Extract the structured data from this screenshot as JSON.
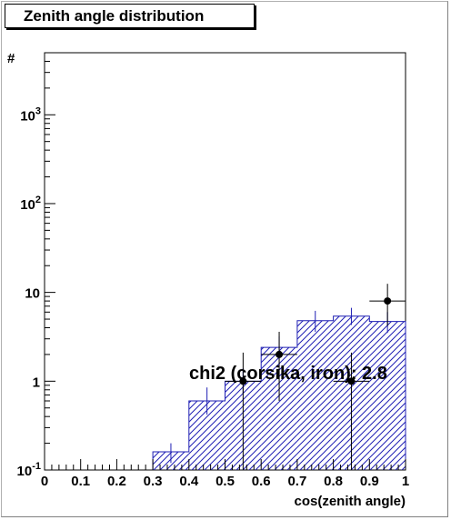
{
  "chart_data": {
    "type": "histogram",
    "title": "Zenith angle distribution",
    "xlabel": "cos(zenith angle)",
    "ylabel": "#",
    "xlim": [
      0,
      1
    ],
    "ylim": [
      0.1,
      5000
    ],
    "yscale": "log",
    "grid": false,
    "x_ticks": [
      {
        "value": 0,
        "label": "0"
      },
      {
        "value": 0.1,
        "label": "0.1"
      },
      {
        "value": 0.2,
        "label": "0.2"
      },
      {
        "value": 0.3,
        "label": "0.3"
      },
      {
        "value": 0.4,
        "label": "0.4"
      },
      {
        "value": 0.5,
        "label": "0.5"
      },
      {
        "value": 0.6,
        "label": "0.6"
      },
      {
        "value": 0.7,
        "label": "0.7"
      },
      {
        "value": 0.8,
        "label": "0.8"
      },
      {
        "value": 0.9,
        "label": "0.9"
      },
      {
        "value": 1,
        "label": "1"
      }
    ],
    "y_ticks": [
      {
        "value": 0.1,
        "base": "10",
        "exp": "-1"
      },
      {
        "value": 1,
        "base": "1",
        "exp": ""
      },
      {
        "value": 10,
        "base": "10",
        "exp": ""
      },
      {
        "value": 100,
        "base": "10",
        "exp": "2"
      },
      {
        "value": 1000,
        "base": "10",
        "exp": "3"
      }
    ],
    "simulation": {
      "color": "#1f1fb4",
      "fill": "hatched",
      "bin_edges": [
        0.3,
        0.4,
        0.5,
        0.6,
        0.7,
        0.8,
        0.9,
        1.0
      ],
      "values": [
        0.16,
        0.6,
        1.0,
        2.4,
        4.8,
        5.4,
        4.7
      ],
      "errors_low": [
        0.12,
        0.42,
        0.72,
        1.8,
        3.6,
        4.3,
        3.5
      ],
      "errors_high": [
        0.2,
        0.85,
        1.4,
        3.2,
        6.2,
        6.7,
        6.0
      ]
    },
    "data_points": {
      "color": "#000000",
      "x": [
        0.55,
        0.65,
        0.85,
        0.95
      ],
      "y": [
        1,
        2,
        1,
        8
      ],
      "y_low": [
        0.1,
        0.6,
        0.1,
        4.2
      ],
      "y_high": [
        2.1,
        3.6,
        2.1,
        12.5
      ],
      "x_halfwidth": 0.05
    },
    "annotation": {
      "text": "chi2 (corsika, iron): 2.8",
      "x": 0.4,
      "y": 1.05
    }
  }
}
